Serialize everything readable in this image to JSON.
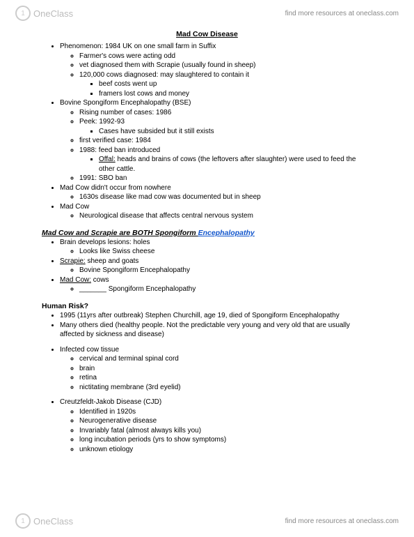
{
  "brand": {
    "logo_text": "OneClass",
    "tagline": "find more resources at oneclass.com"
  },
  "title": "Mad Cow Disease",
  "s1": {
    "phenomenon": "Phenomenon: 1984 UK on one small farm in Suffix",
    "i1": "Farmer's cows were acting odd",
    "i2": "vet diagnosed them with Scrapie (usually found in sheep)",
    "i3": "120,000 cows diagnosed: may slaughtered to contain it",
    "i3a": "beef costs went up",
    "i3b": "framers lost cows and money",
    "bse": "Bovine Spongiform Encephalopathy (BSE)",
    "b1": "Rising number of cases: 1986",
    "b2": "Peek: 1992-93",
    "b2a": "Cases have subsided but it still exists",
    "b3": "first verified case: 1984",
    "b4": "1988: feed ban introduced",
    "b4a_u": "Offal:",
    "b4a_rest": " heads and brains of cows (the leftovers after slaughter) were used to feed the other cattle.",
    "b5": "1991: SBO ban",
    "mc_nowhere": "Mad Cow didn't occur from nowhere",
    "mc_nowhere1": "1630s disease like mad cow was documented but in sheep",
    "mc": "Mad Cow",
    "mc1": "Neurological disease that affects central nervous system"
  },
  "s2": {
    "heading_pre": "Mad Cow and Scrapie are BOTH Spongiform ",
    "heading_link": "Encephalopathy",
    "i1": "Brain develops lesions: holes",
    "i1a": "Looks like Swiss cheese",
    "scrapie_u": "Scrapie:",
    "scrapie_rest": " sheep and goats",
    "scrapie_sub": "Bovine Spongiform Encephalopathy",
    "madcow_u": "Mad Cow:",
    "madcow_rest": " cows",
    "madcow_sub": "_______ Spongiform Encephalopathy"
  },
  "s3": {
    "heading": "Human Risk?",
    "i1": "1995 (11yrs after outbreak) Stephen Churchill, age 19, died of Spongiform Encephalopathy",
    "i2": "Many others died (healthy people. Not the predictable very young and very old that are usually affected by sickness and disease)",
    "tissue": "Infected cow tissue",
    "t1": "cervical and terminal spinal cord",
    "t2": "brain",
    "t3": "retina",
    "t4": "nictitating membrane (3rd eyelid)",
    "cjd": "Creutzfeldt-Jakob Disease (CJD)",
    "c1": "Identified in 1920s",
    "c2": "Neurogenerative disease",
    "c3": "Invariably fatal (almost always kills you)",
    "c4": "long incubation periods (yrs to show symptoms)",
    "c5": "unknown etiology"
  }
}
